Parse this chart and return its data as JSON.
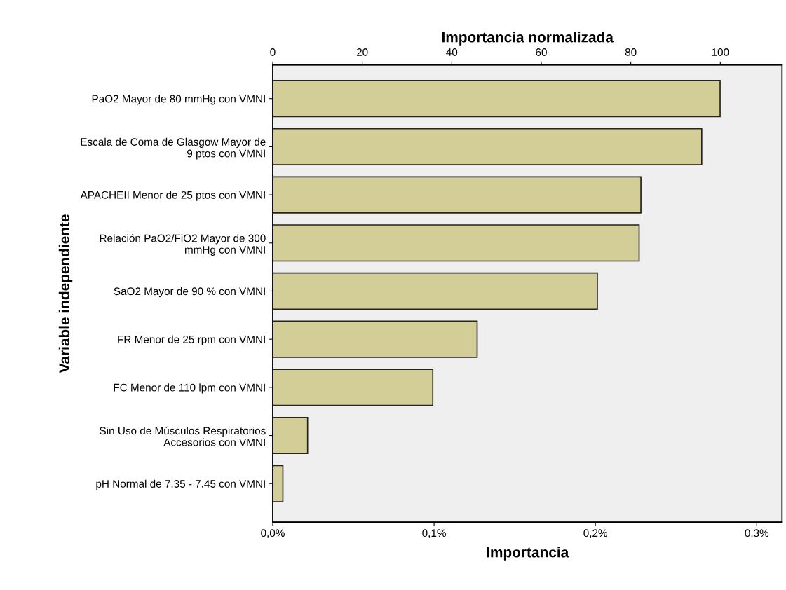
{
  "chart_data": {
    "type": "bar",
    "orientation": "horizontal",
    "categories": [
      "PaO2 Mayor de 80 mmHg con VMNI",
      "Escala de Coma de Glasgow Mayor de\n9 ptos con VMNI",
      "APACHEII Menor de 25 ptos con VMNI",
      "Relación PaO2/FiO2 Mayor de 300\nmmHg con VMNI",
      "SaO2 Mayor de 90 % con VMNI",
      "FR Menor de 25 rpm con VMNI",
      "FC Menor de 110 lpm con VMNI",
      "Sin Uso de Músculos Respiratorios\nAccesorios con VMNI",
      "pH Normal de 7.35 - 7.45 con VMNI"
    ],
    "values": [
      0.2773,
      0.2659,
      0.2282,
      0.2271,
      0.2012,
      0.1267,
      0.0992,
      0.0216,
      0.0063
    ],
    "color": "#d3ce98",
    "xlabel": "Importancia",
    "ylabel": "Variable independiente",
    "x2label": "Importancia normalizada",
    "xlim": [
      0,
      0.3157
    ],
    "xticks": [
      {
        "value": 0,
        "label": "0,0%"
      },
      {
        "value": 0.1,
        "label": "0,1%"
      },
      {
        "value": 0.2,
        "label": "0,2%"
      },
      {
        "value": 0.3,
        "label": "0,3%"
      }
    ],
    "x2lim": [
      0,
      113.8
    ],
    "x2ticks": [
      0,
      20,
      40,
      60,
      80,
      100
    ],
    "grid": false,
    "legend": false
  }
}
